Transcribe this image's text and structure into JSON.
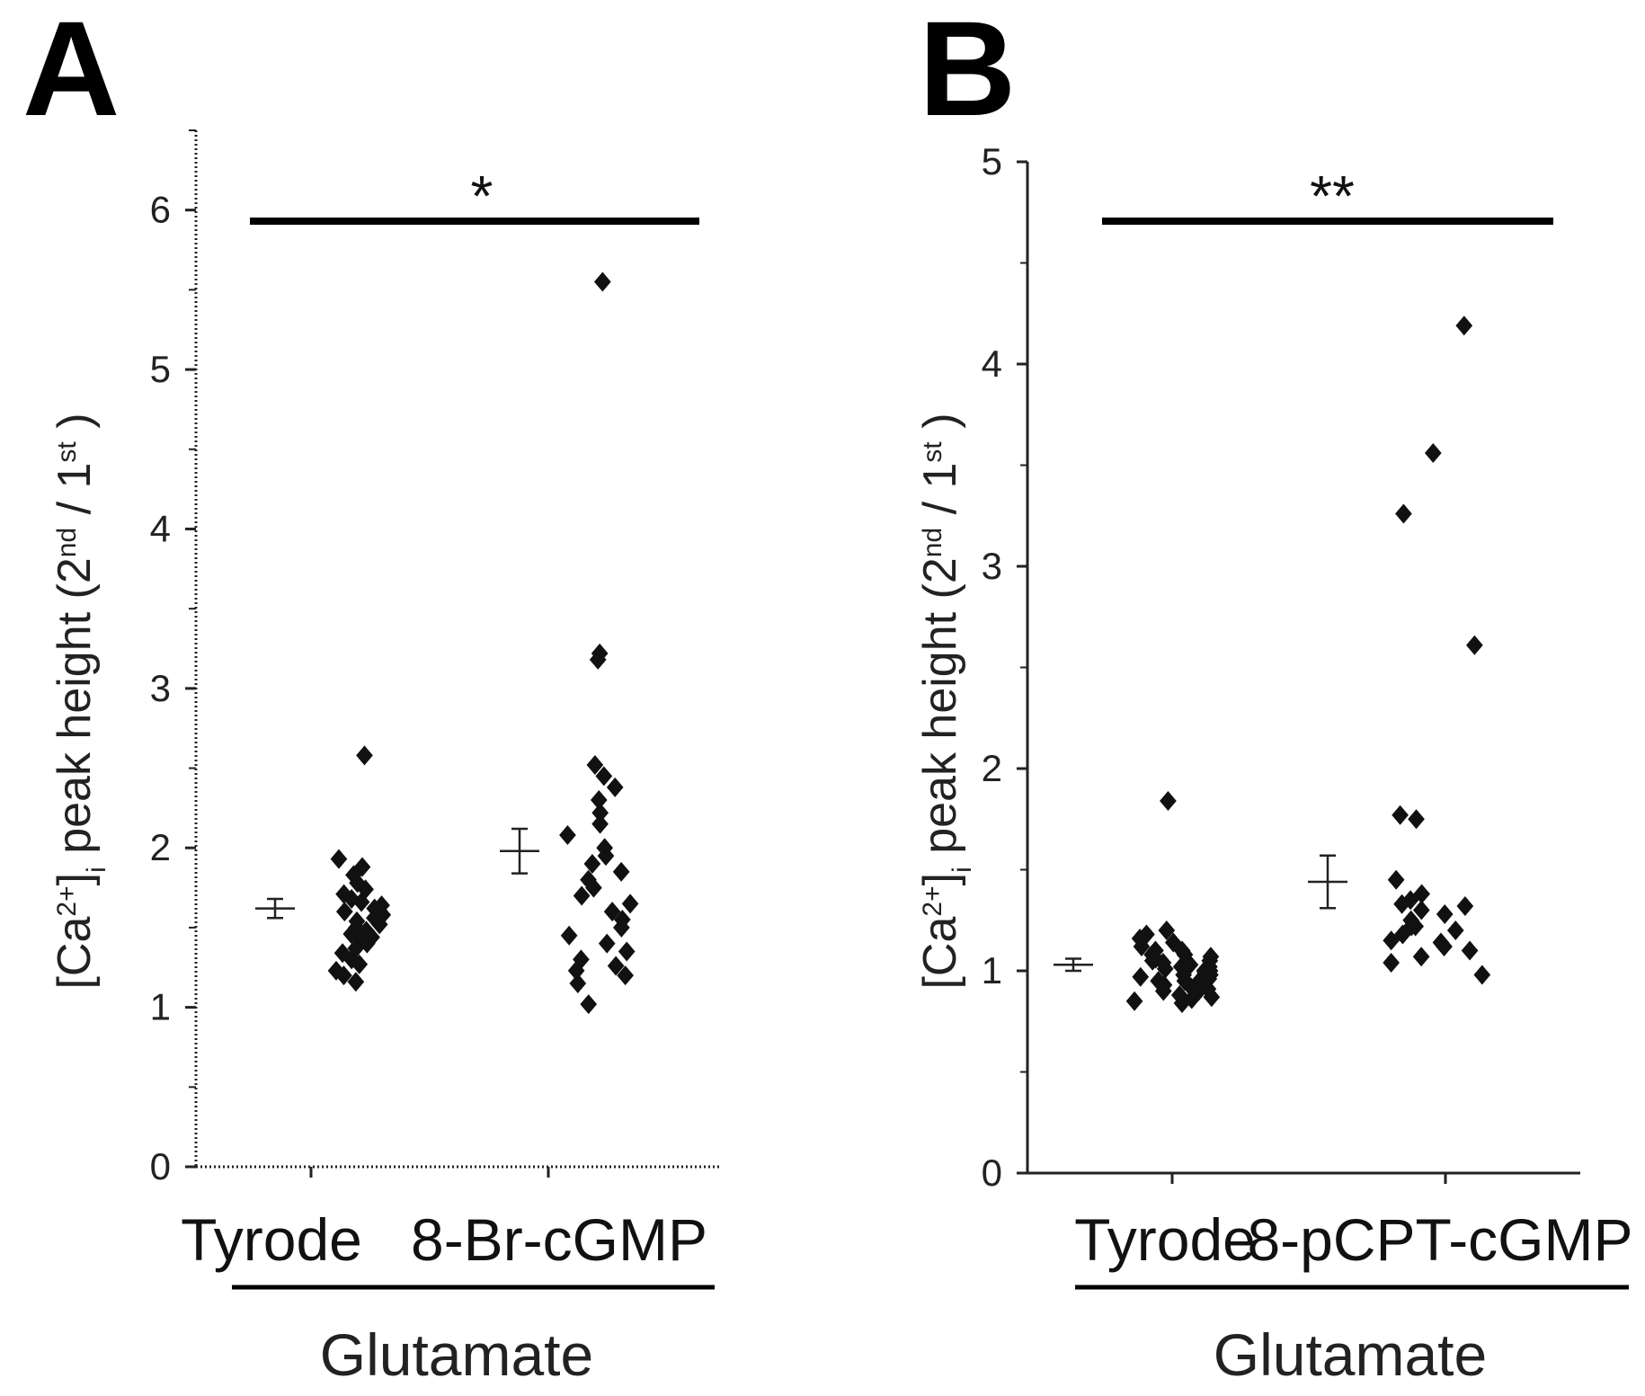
{
  "chart_data": [
    {
      "panel": "A",
      "type": "scatter",
      "ylabel": {
        "main": "[Ca",
        "sup1": "2+",
        "close": "]",
        "sub": "i",
        "rest": " peak height (2",
        "sup2": "nd",
        "mid": " / 1",
        "sup3": "st",
        "end": " )"
      },
      "ylim": [
        0,
        6.5
      ],
      "yticks": [
        0,
        1,
        2,
        3,
        4,
        5,
        6
      ],
      "yticks_minor": [
        0.5,
        1.5,
        2.5,
        3.5,
        4.5,
        5.5,
        6.5
      ],
      "categories": [
        "Tyrode",
        "8-Br-cGMP"
      ],
      "group_label": "Glutamate",
      "significance": "*",
      "series": [
        {
          "name": "Tyrode",
          "mean": 1.62,
          "error": 0.06,
          "points": [
            2.58,
            1.93,
            1.88,
            1.83,
            1.78,
            1.74,
            1.71,
            1.68,
            1.66,
            1.64,
            1.62,
            1.6,
            1.58,
            1.56,
            1.54,
            1.52,
            1.5,
            1.48,
            1.46,
            1.44,
            1.42,
            1.4,
            1.37,
            1.34,
            1.3,
            1.27,
            1.23,
            1.2,
            1.16
          ]
        },
        {
          "name": "8-Br-cGMP",
          "mean": 1.98,
          "error": 0.14,
          "points": [
            5.55,
            3.22,
            3.18,
            2.52,
            2.45,
            2.38,
            2.3,
            2.22,
            2.15,
            2.08,
            2.0,
            1.95,
            1.9,
            1.85,
            1.8,
            1.75,
            1.7,
            1.65,
            1.6,
            1.55,
            1.5,
            1.45,
            1.4,
            1.35,
            1.3,
            1.26,
            1.23,
            1.2,
            1.15,
            1.02
          ]
        }
      ]
    },
    {
      "panel": "B",
      "type": "scatter",
      "ylabel": {
        "main": "[Ca",
        "sup1": "2+",
        "close": "]",
        "sub": "i",
        "rest": " peak height (2",
        "sup2": "nd",
        "mid": " / 1",
        "sup3": "st",
        "end": " )"
      },
      "ylim": [
        0,
        5
      ],
      "yticks": [
        0,
        1,
        2,
        3,
        4,
        5
      ],
      "yticks_minor": [
        0.5,
        1.5,
        2.5,
        3.5,
        4.5
      ],
      "categories": [
        "Tyrode",
        "8-pCPT-cGMP"
      ],
      "group_label": "Glutamate",
      "significance": "**",
      "series": [
        {
          "name": "Tyrode",
          "mean": 1.03,
          "error": 0.03,
          "points": [
            1.84,
            1.2,
            1.18,
            1.16,
            1.14,
            1.12,
            1.1,
            1.08,
            1.07,
            1.06,
            1.05,
            1.04,
            1.03,
            1.02,
            1.01,
            1.0,
            0.99,
            0.98,
            0.97,
            0.96,
            0.95,
            0.94,
            0.93,
            0.92,
            0.91,
            0.9,
            0.89,
            0.88,
            0.87,
            0.86,
            0.85,
            0.84,
            1.0,
            1.02,
            0.98,
            1.05,
            0.95,
            1.1,
            0.9,
            1.08
          ]
        },
        {
          "name": "8-pCPT-cGMP",
          "mean": 1.44,
          "error": 0.13,
          "points": [
            4.19,
            3.56,
            3.26,
            2.61,
            1.77,
            1.75,
            1.45,
            1.38,
            1.35,
            1.32,
            1.3,
            1.28,
            1.25,
            1.22,
            1.2,
            1.18,
            1.15,
            1.12,
            1.1,
            1.07,
            1.04,
            0.98,
            1.33,
            1.22,
            1.14
          ]
        }
      ]
    }
  ]
}
